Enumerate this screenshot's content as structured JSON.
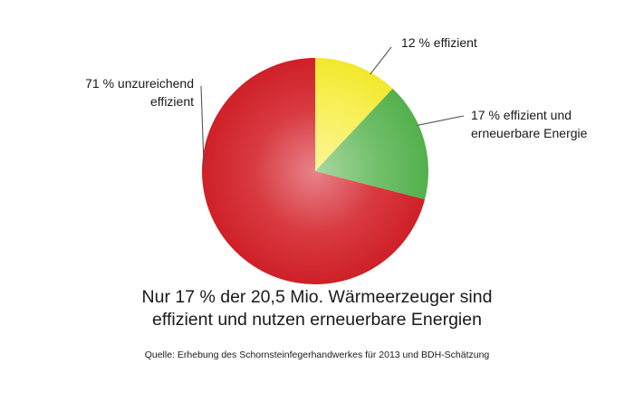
{
  "chart_data": {
    "type": "pie",
    "slices": [
      {
        "label_lines": [
          "71 % unzureichend",
          "effizient"
        ],
        "value": 71,
        "color": "#d42a30"
      },
      {
        "label_lines": [
          "12 % effizient"
        ],
        "value": 12,
        "color": "#f5ee3a"
      },
      {
        "label_lines": [
          "17 % effizient und",
          "erneuerbare Energie"
        ],
        "value": 17,
        "color": "#5fb85a"
      }
    ],
    "start": "12 o'clock",
    "direction": "counterclockwise for the red slice, then yellow and green clockwise"
  },
  "caption": {
    "line1": "Nur 17 % der 20,5 Mio. Wärmeerzeuger sind",
    "line2": "effizient und nutzen erneuerbare Energien"
  },
  "source": "Quelle: Erhebung des Schornsteinfegerhandwerkes für 2013 und BDH-Schätzung"
}
